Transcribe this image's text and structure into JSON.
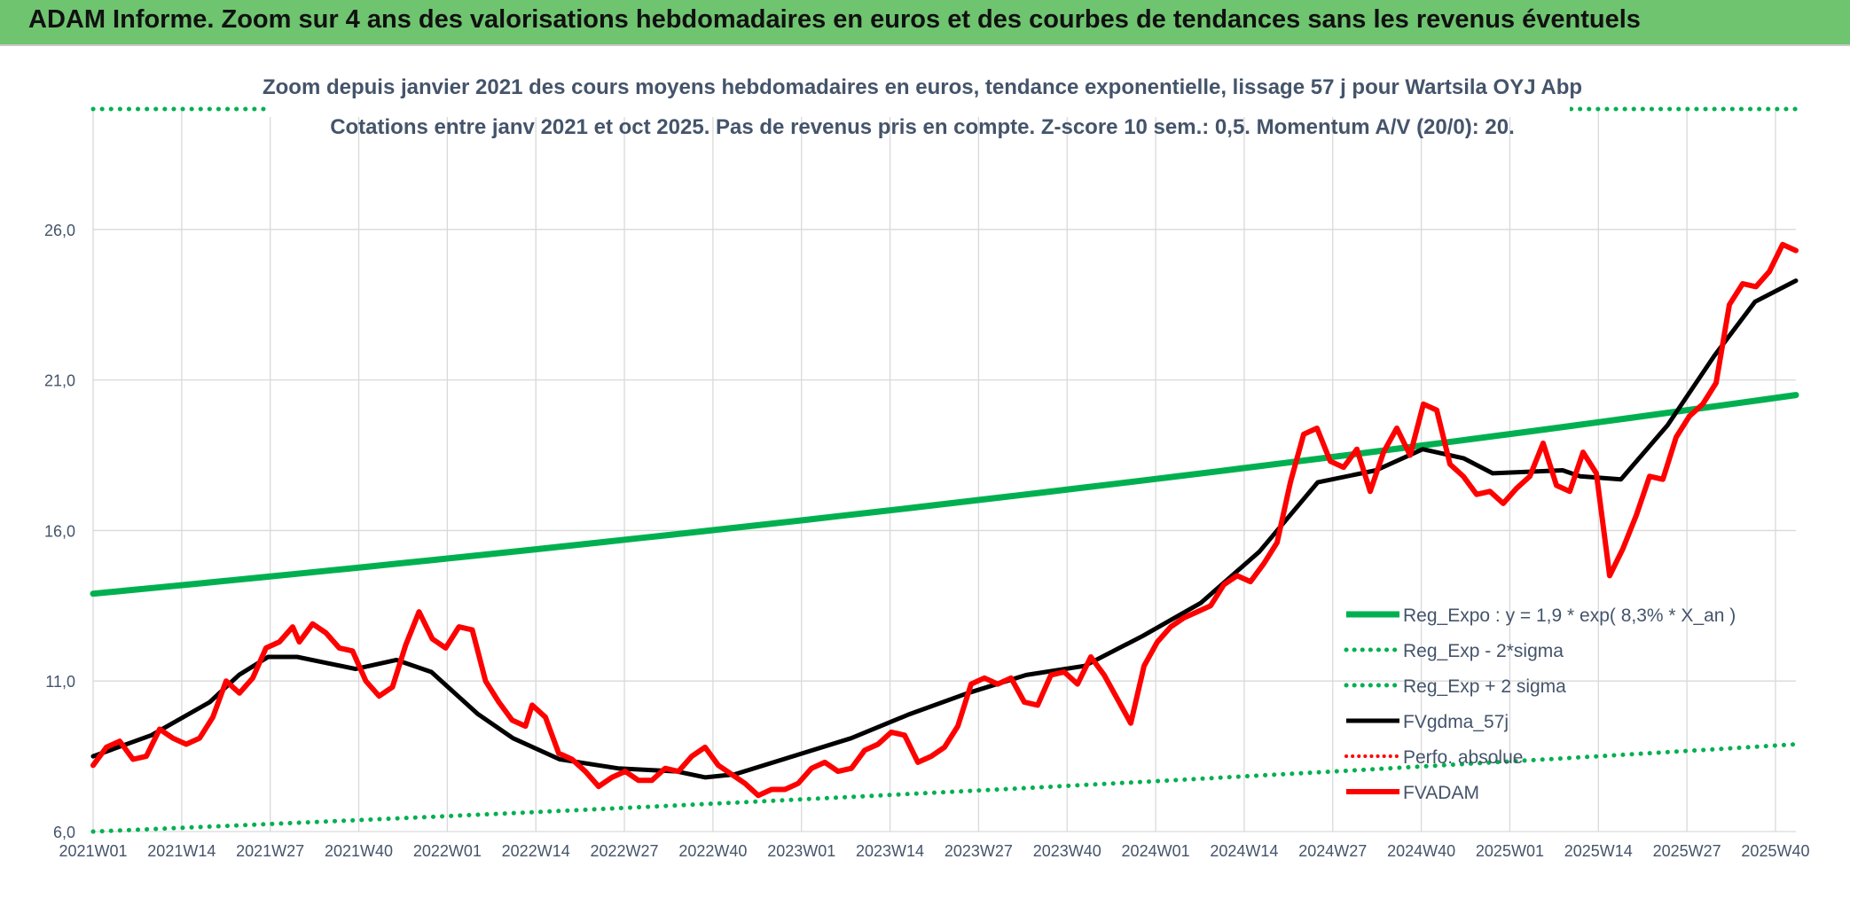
{
  "banner": {
    "title": "ADAM Informe. Zoom sur 4 ans des valorisations hebdomadaires en euros et des courbes de tendances sans les revenus éventuels"
  },
  "colors": {
    "banner_bg": "#6ec46f",
    "green": "#00b050",
    "black": "#000000",
    "red": "#ff0000",
    "text": "#44546a",
    "grid": "#d9d9d9"
  },
  "chart_data": {
    "type": "line",
    "title": "Zoom depuis janvier 2021 des cours moyens hebdomadaires en euros, tendance exponentielle, lissage 57 j pour Wartsila OYJ Abp",
    "subtitle": "Cotations entre janv 2021 et oct 2025. Pas de revenus pris en compte. Z-score 10 sem.: 0,5. Momentum A/V (20/0): 20.",
    "ylim": [
      6,
      30
    ],
    "yticks": [
      "6,0",
      "11,0",
      "16,0",
      "21,0",
      "26,0"
    ],
    "xticks": [
      "2021W01",
      "2021W14",
      "2021W27",
      "2021W40",
      "2022W01",
      "2022W14",
      "2022W27",
      "2022W40",
      "2023W01",
      "2023W14",
      "2023W27",
      "2023W40",
      "2024W01",
      "2024W14",
      "2024W27",
      "2024W40",
      "2025W01",
      "2025W14",
      "2025W27",
      "2025W40"
    ],
    "n_weeks": 250,
    "legend": [
      "Reg_Expo : y = 1,9 * exp( 8,3% *  X_an )",
      "Reg_Exp - 2*sigma",
      "Reg_Exp + 2 sigma",
      "FVgdma_57j",
      "Perfo. absolue",
      "FVADAM"
    ],
    "series": [
      {
        "name": "Reg_Expo",
        "start": 13.9,
        "end": 20.5
      },
      {
        "name": "Reg_Exp - 2*sigma",
        "start": 6.0,
        "end": 8.9
      },
      {
        "name": "Reg_Exp + 2 sigma",
        "start": 30.0,
        "end": 30.0
      },
      {
        "name": "FVgdma_57j",
        "points": [
          [
            0,
            8.5
          ],
          [
            10,
            9.2
          ],
          [
            20,
            10.3
          ],
          [
            25,
            11.2
          ],
          [
            30,
            11.8
          ],
          [
            35,
            11.8
          ],
          [
            40,
            11.6
          ],
          [
            45,
            11.4
          ],
          [
            52,
            11.7
          ],
          [
            58,
            11.3
          ],
          [
            62,
            10.6
          ],
          [
            66,
            9.9
          ],
          [
            72,
            9.1
          ],
          [
            80,
            8.4
          ],
          [
            90,
            8.1
          ],
          [
            100,
            8.0
          ],
          [
            105,
            7.8
          ],
          [
            110,
            7.9
          ],
          [
            120,
            8.5
          ],
          [
            130,
            9.1
          ],
          [
            140,
            9.9
          ],
          [
            150,
            10.6
          ],
          [
            160,
            11.2
          ],
          [
            170,
            11.5
          ],
          [
            180,
            12.5
          ],
          [
            190,
            13.6
          ],
          [
            200,
            15.3
          ],
          [
            210,
            17.6
          ],
          [
            220,
            18.0
          ],
          [
            228,
            18.7
          ],
          [
            235,
            18.4
          ],
          [
            240,
            17.9
          ],
          [
            252,
            18.0
          ],
          [
            255,
            17.8
          ],
          [
            262,
            17.7
          ],
          [
            270,
            19.5
          ],
          [
            278,
            21.8
          ],
          [
            285,
            23.6
          ],
          [
            292,
            24.3
          ]
        ]
      },
      {
        "name": "FVADAM",
        "points": [
          [
            0,
            8.2
          ],
          [
            2,
            8.8
          ],
          [
            4,
            9.0
          ],
          [
            6,
            8.4
          ],
          [
            8,
            8.5
          ],
          [
            10,
            9.4
          ],
          [
            12,
            9.1
          ],
          [
            14,
            8.9
          ],
          [
            16,
            9.1
          ],
          [
            18,
            9.8
          ],
          [
            20,
            11.0
          ],
          [
            22,
            10.6
          ],
          [
            24,
            11.1
          ],
          [
            26,
            12.1
          ],
          [
            28,
            12.3
          ],
          [
            30,
            12.8
          ],
          [
            31,
            12.3
          ],
          [
            33,
            12.9
          ],
          [
            35,
            12.6
          ],
          [
            37,
            12.1
          ],
          [
            39,
            12.0
          ],
          [
            41,
            11.0
          ],
          [
            43,
            10.5
          ],
          [
            45,
            10.8
          ],
          [
            47,
            12.2
          ],
          [
            49,
            13.3
          ],
          [
            51,
            12.4
          ],
          [
            53,
            12.1
          ],
          [
            55,
            12.8
          ],
          [
            57,
            12.7
          ],
          [
            59,
            11.0
          ],
          [
            61,
            10.3
          ],
          [
            63,
            9.7
          ],
          [
            65,
            9.5
          ],
          [
            66,
            10.2
          ],
          [
            68,
            9.8
          ],
          [
            70,
            8.6
          ],
          [
            72,
            8.4
          ],
          [
            74,
            8.0
          ],
          [
            76,
            7.5
          ],
          [
            78,
            7.8
          ],
          [
            80,
            8.0
          ],
          [
            82,
            7.7
          ],
          [
            84,
            7.7
          ],
          [
            86,
            8.1
          ],
          [
            88,
            8.0
          ],
          [
            90,
            8.5
          ],
          [
            92,
            8.8
          ],
          [
            94,
            8.2
          ],
          [
            96,
            7.9
          ],
          [
            98,
            7.6
          ],
          [
            100,
            7.2
          ],
          [
            102,
            7.4
          ],
          [
            104,
            7.4
          ],
          [
            106,
            7.6
          ],
          [
            108,
            8.1
          ],
          [
            110,
            8.3
          ],
          [
            112,
            8.0
          ],
          [
            114,
            8.1
          ],
          [
            116,
            8.7
          ],
          [
            118,
            8.9
          ],
          [
            120,
            9.3
          ],
          [
            122,
            9.2
          ],
          [
            124,
            8.3
          ],
          [
            126,
            8.5
          ],
          [
            128,
            8.8
          ],
          [
            130,
            9.5
          ],
          [
            132,
            10.9
          ],
          [
            134,
            11.1
          ],
          [
            136,
            10.9
          ],
          [
            138,
            11.1
          ],
          [
            140,
            10.3
          ],
          [
            142,
            10.2
          ],
          [
            144,
            11.2
          ],
          [
            146,
            11.3
          ],
          [
            148,
            10.9
          ],
          [
            150,
            11.8
          ],
          [
            152,
            11.2
          ],
          [
            154,
            10.4
          ],
          [
            156,
            9.6
          ],
          [
            158,
            11.5
          ],
          [
            160,
            12.3
          ],
          [
            162,
            12.8
          ],
          [
            164,
            13.1
          ],
          [
            166,
            13.3
          ],
          [
            168,
            13.5
          ],
          [
            170,
            14.2
          ],
          [
            172,
            14.5
          ],
          [
            174,
            14.3
          ],
          [
            176,
            14.9
          ],
          [
            178,
            15.6
          ],
          [
            180,
            17.6
          ],
          [
            182,
            19.2
          ],
          [
            184,
            19.4
          ],
          [
            186,
            18.3
          ],
          [
            188,
            18.1
          ],
          [
            190,
            18.7
          ],
          [
            192,
            17.3
          ],
          [
            194,
            18.6
          ],
          [
            196,
            19.4
          ],
          [
            198,
            18.5
          ],
          [
            200,
            20.2
          ],
          [
            202,
            20.0
          ],
          [
            204,
            18.2
          ],
          [
            206,
            17.8
          ],
          [
            208,
            17.2
          ],
          [
            210,
            17.3
          ],
          [
            212,
            16.9
          ],
          [
            214,
            17.4
          ],
          [
            216,
            17.8
          ],
          [
            218,
            18.9
          ],
          [
            220,
            17.5
          ],
          [
            222,
            17.3
          ],
          [
            224,
            18.6
          ],
          [
            226,
            17.9
          ],
          [
            228,
            14.5
          ],
          [
            230,
            15.4
          ],
          [
            232,
            16.5
          ],
          [
            234,
            17.8
          ],
          [
            236,
            17.7
          ],
          [
            238,
            19.1
          ],
          [
            240,
            19.8
          ],
          [
            242,
            20.2
          ],
          [
            244,
            20.9
          ],
          [
            246,
            23.5
          ],
          [
            248,
            24.2
          ],
          [
            250,
            24.1
          ],
          [
            252,
            24.6
          ],
          [
            254,
            25.5
          ],
          [
            256,
            25.3
          ]
        ]
      }
    ]
  }
}
